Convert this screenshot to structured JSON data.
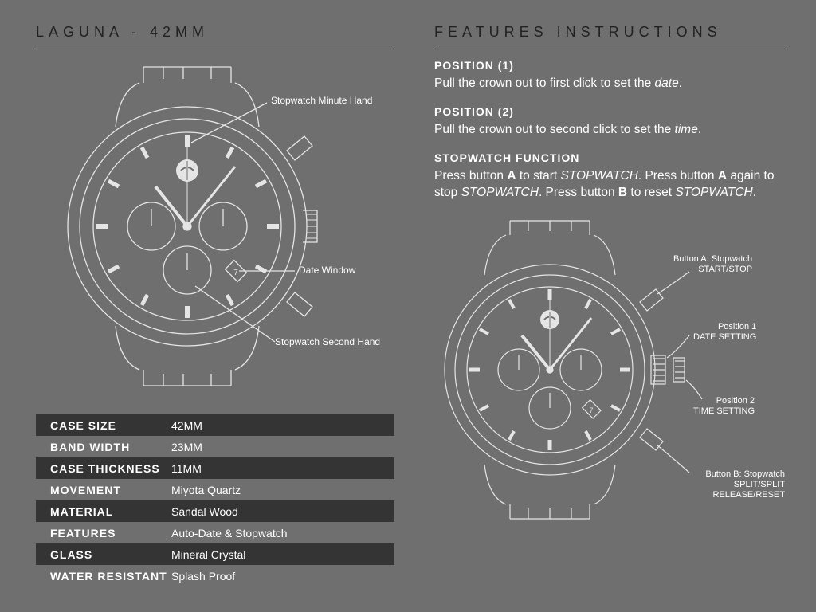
{
  "left": {
    "title": "LAGUNA - 42MM",
    "callouts": {
      "minute_hand": "Stopwatch Minute Hand",
      "date_window": "Date Window",
      "second_hand": "Stopwatch Second Hand"
    }
  },
  "specs": [
    {
      "label": "CASE SIZE",
      "value": "42MM",
      "dark": true
    },
    {
      "label": "BAND WIDTH",
      "value": "23MM",
      "dark": false
    },
    {
      "label": "CASE THICKNESS",
      "value": "11MM",
      "dark": true
    },
    {
      "label": "MOVEMENT",
      "value": "Miyota Quartz",
      "dark": false
    },
    {
      "label": "MATERIAL",
      "value": "Sandal Wood",
      "dark": true
    },
    {
      "label": "FEATURES",
      "value": "Auto-Date & Stopwatch",
      "dark": false
    },
    {
      "label": "GLASS",
      "value": "Mineral Crystal",
      "dark": true
    },
    {
      "label": "WATER RESISTANT",
      "value": "Splash Proof",
      "dark": false
    }
  ],
  "right": {
    "title": "FEATURES INSTRUCTIONS",
    "pos1_head": "POSITION (1)",
    "pos1_body": "Pull the crown out to first click to set the <i>date</i>.",
    "pos2_head": "POSITION (2)",
    "pos2_body": "Pull the crown out to second click to set the <i>time</i>.",
    "sw_head": "STOPWATCH FUNCTION",
    "sw_body": "Press button <b>A</b> to start <i>STOPWATCH</i>. Press button <b>A</b> again to stop <i>STOPWATCH</i>. Press button <b>B</b> to reset <i>STOPWATCH</i>.",
    "callouts": {
      "btn_a": "Button A: Stopwatch<br>START/STOP",
      "pos1": "Position 1<br>DATE SETTING",
      "pos2": "Position 2<br>TIME SETTING",
      "btn_b": "Button B: Stopwatch<br>SPLIT/SPLIT RELEASE/RESET"
    }
  },
  "watch_style": {
    "stroke": "#e5e5e5",
    "stroke_width": 1.2,
    "dial_fill": "#6f6f6f"
  }
}
